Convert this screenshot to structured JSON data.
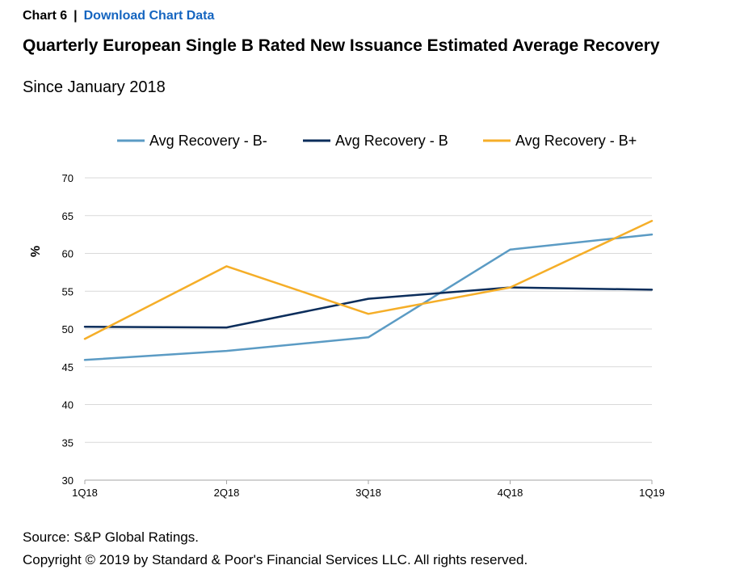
{
  "header": {
    "chart_label": "Chart 6",
    "separator": "|",
    "download_link": "Download Chart Data",
    "link_color": "#1565c0"
  },
  "chart_data": {
    "type": "line",
    "title": "Quarterly European Single B Rated New Issuance Estimated Average Recovery",
    "subtitle": "Since January 2018",
    "xlabel": "",
    "ylabel": "%",
    "categories": [
      "1Q18",
      "2Q18",
      "3Q18",
      "4Q18",
      "1Q19"
    ],
    "ylim": [
      30,
      70
    ],
    "yticks": [
      30,
      35,
      40,
      45,
      50,
      55,
      60,
      65,
      70
    ],
    "grid": true,
    "legend_position": "top",
    "series": [
      {
        "name": "Avg Recovery - B-",
        "color": "#5b9bc4",
        "values": [
          45.9,
          47.1,
          48.9,
          60.5,
          62.5
        ]
      },
      {
        "name": "Avg Recovery - B",
        "color": "#0b2d5b",
        "values": [
          50.3,
          50.2,
          54.0,
          55.5,
          55.2
        ]
      },
      {
        "name": "Avg Recovery - B+",
        "color": "#f5ae28",
        "values": [
          48.7,
          58.3,
          52.0,
          55.5,
          64.3
        ]
      }
    ]
  },
  "footer": {
    "source": "Source: S&P Global Ratings.",
    "copyright": "Copyright © 2019 by Standard & Poor's Financial Services LLC. All rights reserved."
  }
}
